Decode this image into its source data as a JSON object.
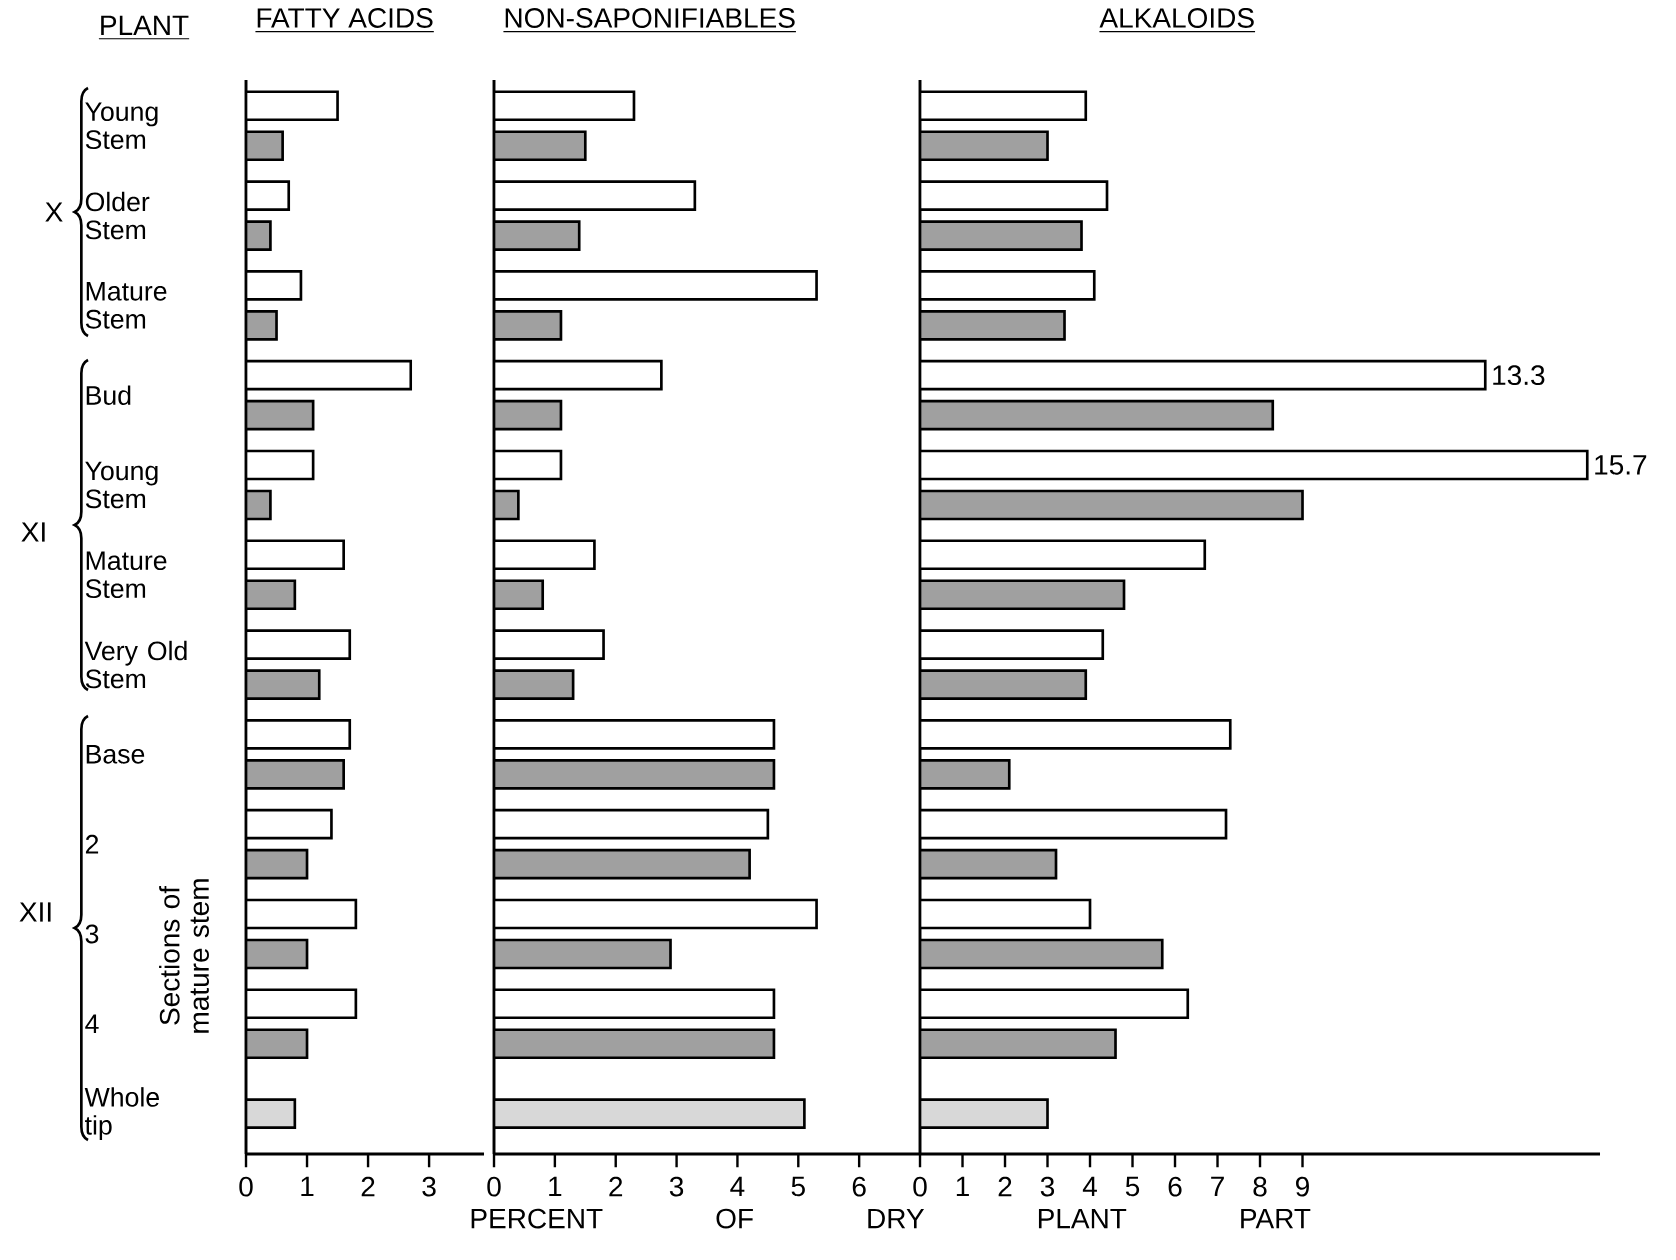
{
  "chart_data": [
    {
      "type": "bar",
      "orientation": "horizontal",
      "title": "FATTY ACIDS",
      "categories": [
        "Young Stem",
        "Older Stem",
        "Mature Stem",
        "Bud",
        "Young Stem",
        "Mature Stem",
        "Very Old Stem",
        "Base",
        "2",
        "3",
        "4",
        "Whole tip"
      ],
      "series": [
        {
          "color": "#ffffff",
          "values": [
            1.5,
            0.7,
            0.9,
            2.7,
            1.1,
            1.6,
            1.7,
            1.7,
            1.4,
            1.8,
            1.8,
            null
          ]
        },
        {
          "color": "#a0a0a0",
          "values": [
            0.6,
            0.4,
            0.5,
            1.1,
            0.4,
            0.8,
            1.2,
            1.6,
            1.0,
            1.0,
            1.0,
            null
          ]
        },
        {
          "color": "#d8d8d8",
          "values": [
            null,
            null,
            null,
            null,
            null,
            null,
            null,
            null,
            null,
            null,
            null,
            0.8
          ]
        }
      ],
      "xlim": [
        0,
        3.9
      ],
      "xticks": [
        0,
        1,
        2,
        3
      ],
      "annotations": [
        "PLANT",
        "X",
        "XI",
        "XII",
        "Sections of mature stem"
      ]
    },
    {
      "type": "bar",
      "orientation": "horizontal",
      "title": "NON-SAPONIFIABLES",
      "categories": [
        null,
        null,
        null,
        null,
        null,
        null,
        null,
        null,
        null,
        null,
        null,
        null
      ],
      "series": [
        {
          "color": "#ffffff",
          "values": [
            2.3,
            3.3,
            5.3,
            2.75,
            1.1,
            1.65,
            1.8,
            4.6,
            4.5,
            5.3,
            4.6,
            null
          ]
        },
        {
          "color": "#a0a0a0",
          "values": [
            1.5,
            1.4,
            1.1,
            1.1,
            0.4,
            0.8,
            1.3,
            4.6,
            4.2,
            2.9,
            4.6,
            null
          ]
        },
        {
          "color": "#d8d8d8",
          "values": [
            null,
            null,
            null,
            null,
            null,
            null,
            null,
            null,
            null,
            null,
            null,
            5.1
          ]
        }
      ],
      "xlim": [
        0,
        7
      ],
      "xticks": [
        0,
        1,
        2,
        3,
        4,
        5,
        6
      ],
      "tick_labels": "x",
      "xlabel": "PERCENT OF DRY PLANT PART"
    },
    {
      "type": "bar",
      "orientation": "horizontal",
      "title": "ALKALOIDS",
      "categories": [
        null,
        null,
        null,
        null,
        null,
        null,
        null,
        null,
        null,
        null,
        null,
        null
      ],
      "series": [
        {
          "color": "#ffffff",
          "values": [
            3.9,
            4.4,
            4.1,
            13.3,
            15.7,
            6.7,
            4.3,
            7.3,
            7.2,
            4.0,
            6.3,
            null
          ],
          "value_labels": [
            null,
            null,
            null,
            "13.3",
            "15.7",
            null,
            null,
            null,
            null,
            null,
            null,
            null
          ]
        },
        {
          "color": "#a0a0a0",
          "values": [
            3.0,
            3.8,
            3.4,
            8.3,
            9.0,
            4.8,
            3.9,
            2.1,
            3.2,
            5.7,
            4.6,
            null
          ]
        },
        {
          "color": "#d8d8d8",
          "values": [
            null,
            null,
            null,
            null,
            null,
            null,
            null,
            null,
            null,
            null,
            null,
            3.0
          ]
        }
      ],
      "xlim": [
        0,
        16
      ],
      "xticks": [
        0,
        1,
        2,
        3,
        4,
        5,
        6,
        7,
        8,
        9
      ],
      "tick_labels": "x"
    }
  ]
}
